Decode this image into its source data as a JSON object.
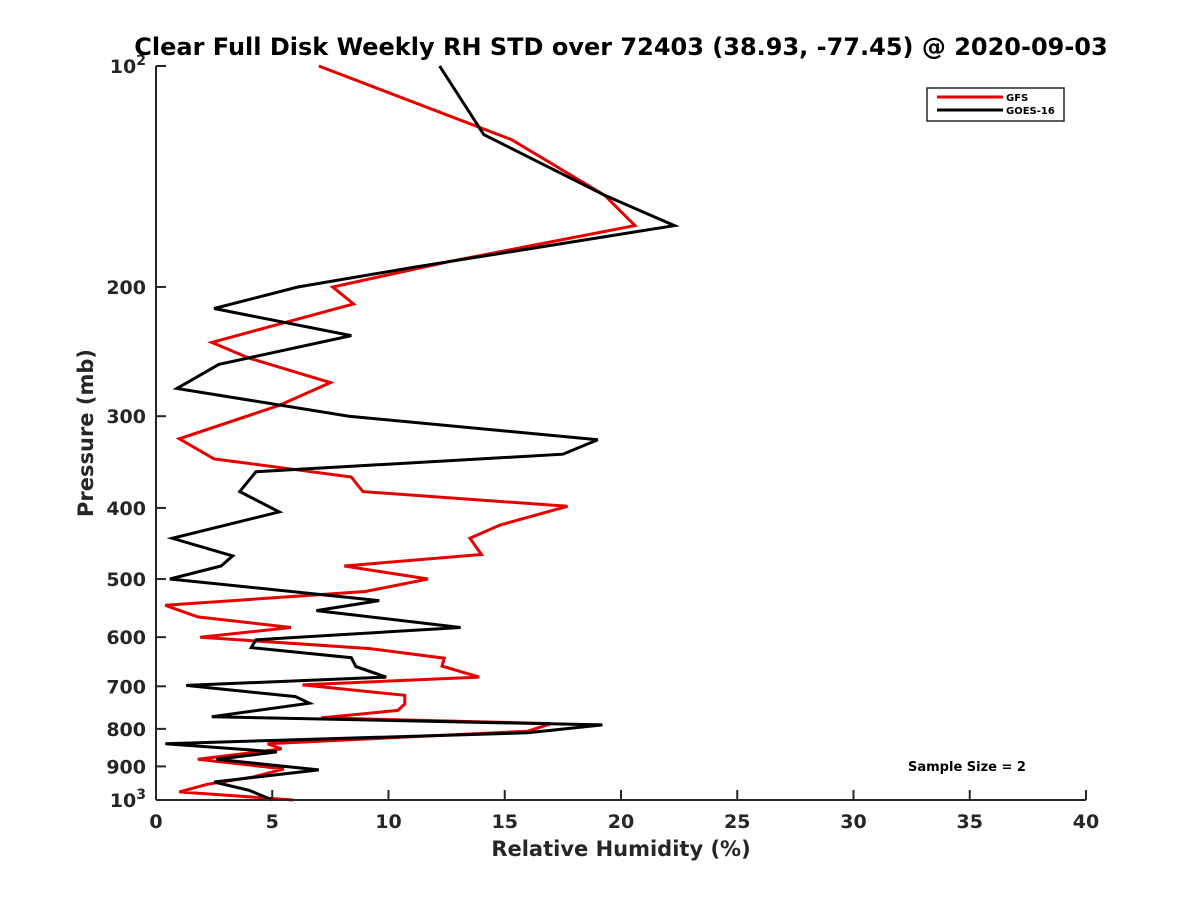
{
  "chart_data": {
    "type": "line",
    "title": "Clear Full Disk Weekly RH STD over 72403 (38.93, -77.45) @ 2020-09-03",
    "xlabel": "Relative Humidity (%)",
    "ylabel": "Pressure (mb)",
    "xlim": [
      0,
      40
    ],
    "ylim": [
      100,
      1000
    ],
    "y_scale": "log",
    "y_reversed": true,
    "x_ticks": [
      "0",
      "5",
      "10",
      "15",
      "20",
      "25",
      "30",
      "35",
      "40"
    ],
    "y_ticks": [
      {
        "value": 100,
        "base": "10",
        "exp": "2"
      },
      {
        "value": 200,
        "label": "200"
      },
      {
        "value": 300,
        "label": "300"
      },
      {
        "value": 400,
        "label": "400"
      },
      {
        "value": 500,
        "label": "500"
      },
      {
        "value": 600,
        "label": "600"
      },
      {
        "value": 700,
        "label": "700"
      },
      {
        "value": 800,
        "label": "800"
      },
      {
        "value": 900,
        "label": "900"
      },
      {
        "value": 1000,
        "base": "10",
        "exp": "3"
      }
    ],
    "legend_position": "top-right",
    "annotation": "Sample Size = 2",
    "grid": false,
    "series": [
      {
        "name": "GFS",
        "color": "#e60000",
        "points": [
          [
            7.0,
            100
          ],
          [
            15.3,
            126
          ],
          [
            19.3,
            150
          ],
          [
            20.6,
            165
          ],
          [
            12.5,
            185
          ],
          [
            7.6,
            200
          ],
          [
            8.5,
            211
          ],
          [
            2.4,
            238
          ],
          [
            4.0,
            250
          ],
          [
            7.5,
            270
          ],
          [
            5.3,
            290
          ],
          [
            1.0,
            322
          ],
          [
            2.5,
            343
          ],
          [
            8.4,
            363
          ],
          [
            8.9,
            380
          ],
          [
            17.7,
            398
          ],
          [
            14.8,
            422
          ],
          [
            13.5,
            440
          ],
          [
            14.0,
            463
          ],
          [
            8.1,
            480
          ],
          [
            11.7,
            500
          ],
          [
            9.0,
            520
          ],
          [
            0.4,
            543
          ],
          [
            1.8,
            563
          ],
          [
            5.8,
            582
          ],
          [
            1.9,
            600
          ],
          [
            9.2,
            622
          ],
          [
            12.4,
            641
          ],
          [
            12.3,
            657
          ],
          [
            13.9,
            680
          ],
          [
            6.3,
            697
          ],
          [
            10.7,
            720
          ],
          [
            10.7,
            740
          ],
          [
            10.4,
            755
          ],
          [
            7.1,
            773
          ],
          [
            17.0,
            787
          ],
          [
            16.0,
            806
          ],
          [
            4.8,
            838
          ],
          [
            5.4,
            852
          ],
          [
            1.8,
            880
          ],
          [
            5.5,
            907
          ],
          [
            4.2,
            930
          ],
          [
            2.2,
            952
          ],
          [
            1.0,
            975
          ],
          [
            5.9,
            1000
          ]
        ]
      },
      {
        "name": "GOES-16",
        "color": "#000000",
        "points": [
          [
            12.2,
            100
          ],
          [
            14.1,
            124
          ],
          [
            19.3,
            150
          ],
          [
            22.3,
            165
          ],
          [
            11.1,
            188
          ],
          [
            6.1,
            200
          ],
          [
            2.5,
            214
          ],
          [
            8.4,
            233
          ],
          [
            2.7,
            255
          ],
          [
            0.9,
            275
          ],
          [
            8.3,
            300
          ],
          [
            19.0,
            323
          ],
          [
            17.5,
            338
          ],
          [
            4.3,
            357
          ],
          [
            3.6,
            380
          ],
          [
            5.3,
            405
          ],
          [
            0.7,
            440
          ],
          [
            3.3,
            465
          ],
          [
            2.8,
            480
          ],
          [
            0.6,
            500
          ],
          [
            9.6,
            535
          ],
          [
            6.9,
            552
          ],
          [
            13.1,
            582
          ],
          [
            4.3,
            605
          ],
          [
            4.1,
            620
          ],
          [
            8.4,
            640
          ],
          [
            8.6,
            658
          ],
          [
            9.9,
            680
          ],
          [
            1.3,
            698
          ],
          [
            6.0,
            723
          ],
          [
            6.6,
            738
          ],
          [
            2.4,
            770
          ],
          [
            19.2,
            790
          ],
          [
            16.0,
            810
          ],
          [
            0.4,
            838
          ],
          [
            5.2,
            860
          ],
          [
            2.6,
            880
          ],
          [
            7.0,
            910
          ],
          [
            2.5,
            945
          ],
          [
            4.0,
            970
          ],
          [
            5.0,
            1000
          ]
        ]
      }
    ]
  }
}
